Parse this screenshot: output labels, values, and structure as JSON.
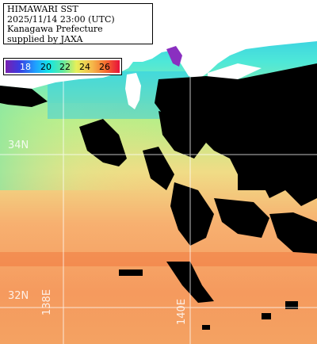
{
  "info": {
    "line1": "HIMAWARI SST",
    "line2": "2025/11/14 23:00 (UTC)",
    "line3": "Kanagawa Prefecture",
    "line4": "supplied by JAXA"
  },
  "legend": {
    "ticks": [
      "18",
      "20",
      "22",
      "24",
      "26"
    ]
  },
  "grid": {
    "lat_labels": [
      "34N",
      "32N"
    ],
    "lon_labels": [
      "138E",
      "140E"
    ]
  },
  "colors": {
    "land": "#ffffff",
    "cloud": "#000000",
    "gridline": "#ffffff"
  }
}
